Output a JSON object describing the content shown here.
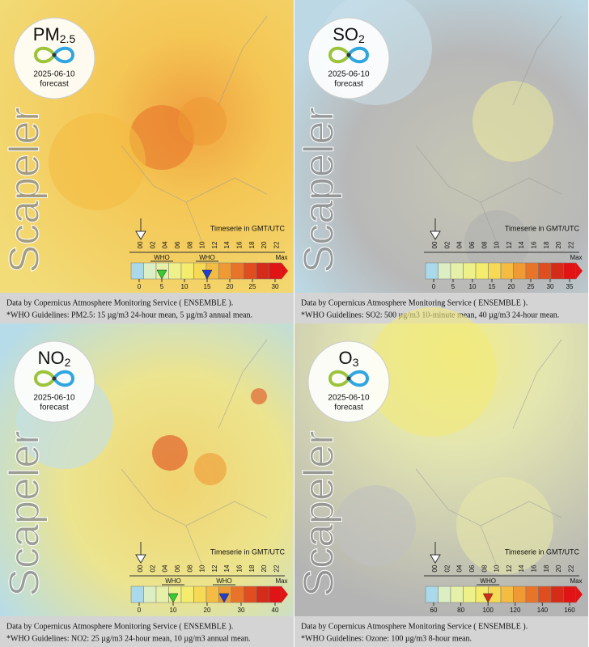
{
  "brand": "Scapeler",
  "date": "2025-06-10",
  "label": "forecast",
  "timeserie": "Timeserie in GMT/UTC",
  "hours": [
    "00",
    "02",
    "04",
    "06",
    "08",
    "10",
    "12",
    "14",
    "16",
    "18",
    "20",
    "22"
  ],
  "max_label": "Max",
  "who_label": "WHO",
  "source": "Data by Copernicus Atmosphere Monitoring Service ( ENSEMBLE ).",
  "scale_colors": [
    "#a9d9ea",
    "#dbeec4",
    "#e6f0a8",
    "#eef08a",
    "#f4ec6c",
    "#f6d954",
    "#f4bc42",
    "#ef9a34",
    "#e8742a",
    "#e04e20",
    "#d42c18",
    "#e01414"
  ],
  "panels": [
    {
      "pollutant": "PM",
      "subscript": "2.5",
      "legend_ticks": [
        0,
        5,
        10,
        15,
        20,
        25,
        30
      ],
      "who_markers": [
        {
          "value": 5,
          "color": "#33cc33"
        },
        {
          "value": 15,
          "color": "#1f3fd0"
        }
      ],
      "guideline": "*WHO Guidelines: PM2.5: 15 µg/m3 24-hour mean, 5 µg/m3 annual mean."
    },
    {
      "pollutant": "SO",
      "subscript": "2",
      "legend_ticks": [
        0,
        5,
        10,
        15,
        20,
        25,
        30,
        35
      ],
      "who_markers": [],
      "guideline": "*WHO Guidelines: SO2: 500 µg/m3 10-minute mean, 40 µg/m3 24-hour mean."
    },
    {
      "pollutant": "NO",
      "subscript": "2",
      "legend_ticks": [
        0,
        10,
        20,
        30,
        40
      ],
      "who_markers": [
        {
          "value": 10,
          "color": "#33cc33"
        },
        {
          "value": 25,
          "color": "#1f3fd0"
        }
      ],
      "guideline": "*WHO Guidelines: NO2: 25 µg/m3 24-hour mean, 10 µg/m3 annual mean."
    },
    {
      "pollutant": "O",
      "subscript": "3",
      "legend_ticks": [
        60,
        80,
        100,
        120,
        140,
        160
      ],
      "who_markers": [
        {
          "value": 100,
          "color": "#d42c18"
        }
      ],
      "guideline": "*WHO Guidelines: Ozone: 100 µg/m3 8-hour mean."
    }
  ]
}
